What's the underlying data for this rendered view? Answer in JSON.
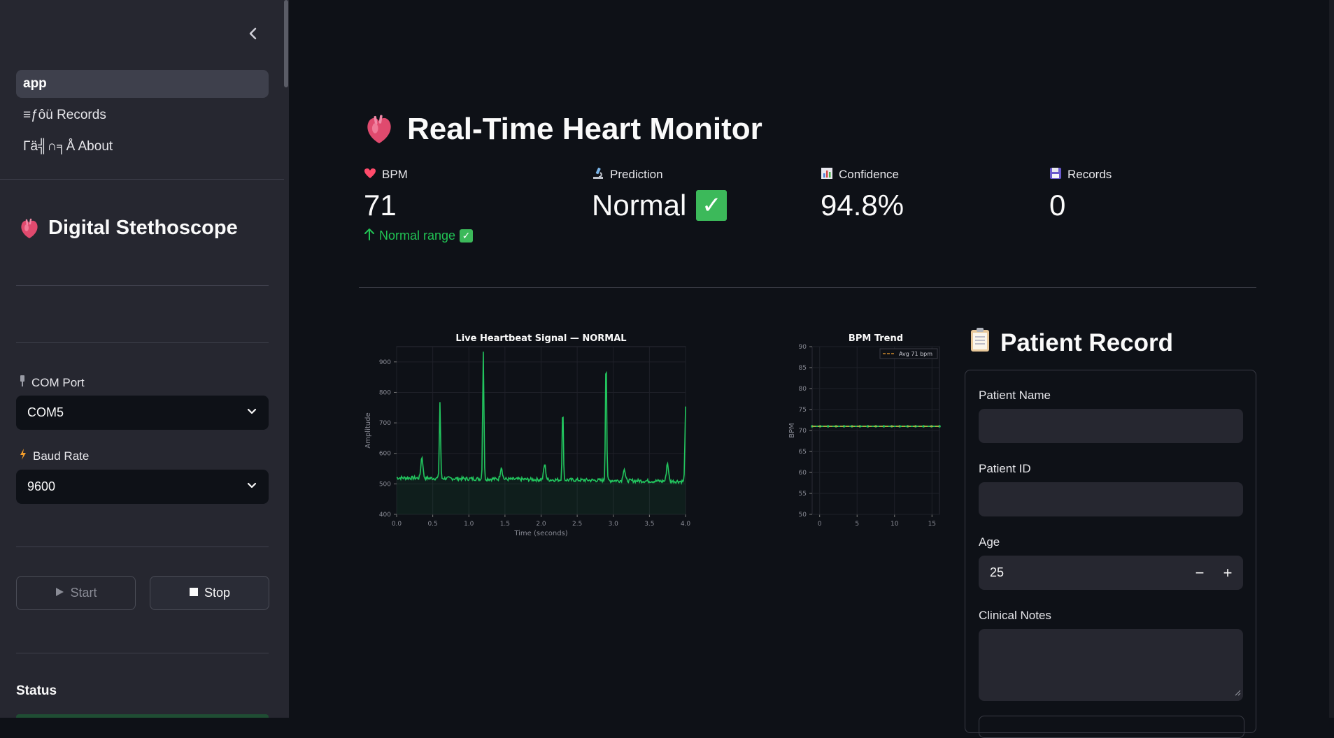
{
  "sidebar": {
    "nav": [
      {
        "label": "app",
        "active": true
      },
      {
        "label": "≡ƒôü Records",
        "active": false
      },
      {
        "label": "Γä╣∩╕Å About",
        "active": false
      }
    ],
    "title": "Digital Stethoscope",
    "com_port": {
      "label": "COM Port",
      "value": "COM5"
    },
    "baud_rate": {
      "label": "Baud Rate",
      "value": "9600"
    },
    "start_label": "Start",
    "stop_label": "Stop",
    "status_heading": "Status"
  },
  "header": {
    "title": "Real-Time Heart Monitor"
  },
  "metrics": [
    {
      "label": "BPM",
      "value": "71",
      "delta": "Normal range"
    },
    {
      "label": "Prediction",
      "value": "Normal"
    },
    {
      "label": "Confidence",
      "value": "94.8%"
    },
    {
      "label": "Records",
      "value": "0"
    }
  ],
  "patient": {
    "title": "Patient Record",
    "name_label": "Patient Name",
    "name_value": "",
    "id_label": "Patient ID",
    "id_value": "",
    "age_label": "Age",
    "age_value": "25",
    "notes_label": "Clinical Notes",
    "notes_value": "",
    "minus": "−",
    "plus": "+"
  },
  "colors": {
    "accent_green": "#21c354",
    "signal_green": "#22c55e",
    "avg_orange": "#f0a030"
  },
  "chart_data": [
    {
      "type": "line",
      "title": "Live Heartbeat Signal — NORMAL",
      "xlabel": "Time (seconds)",
      "ylabel": "Amplitude",
      "xlim": [
        0.0,
        4.0
      ],
      "ylim": [
        400,
        950
      ],
      "xticks": [
        "0.0",
        "0.5",
        "1.0",
        "1.5",
        "2.0",
        "2.5",
        "3.0",
        "3.5",
        "4.0"
      ],
      "yticks": [
        "400",
        "500",
        "600",
        "700",
        "800",
        "900"
      ],
      "grid": true,
      "baseline": 520,
      "peaks": [
        {
          "x": 0.35,
          "y": 590
        },
        {
          "x": 0.6,
          "y": 770
        },
        {
          "x": 1.2,
          "y": 940
        },
        {
          "x": 1.45,
          "y": 560
        },
        {
          "x": 2.05,
          "y": 570
        },
        {
          "x": 2.3,
          "y": 755
        },
        {
          "x": 2.9,
          "y": 935
        },
        {
          "x": 3.15,
          "y": 560
        },
        {
          "x": 3.75,
          "y": 580
        },
        {
          "x": 4.0,
          "y": 760
        }
      ]
    },
    {
      "type": "line",
      "title": "BPM Trend",
      "ylabel": "BPM",
      "xlim": [
        -1,
        16
      ],
      "ylim": [
        50,
        90
      ],
      "xticks": [
        "0",
        "5",
        "10",
        "15"
      ],
      "yticks": [
        "50",
        "55",
        "60",
        "65",
        "70",
        "75",
        "80",
        "85",
        "90"
      ],
      "grid": true,
      "legend_position": "top-right",
      "series": [
        {
          "values": [
            71,
            71,
            71,
            71,
            71,
            71,
            71,
            71,
            71,
            71,
            71,
            71,
            71,
            71,
            71,
            71,
            71
          ]
        },
        {
          "name": "Avg 71 bpm",
          "values": [
            71,
            71
          ]
        }
      ]
    }
  ]
}
